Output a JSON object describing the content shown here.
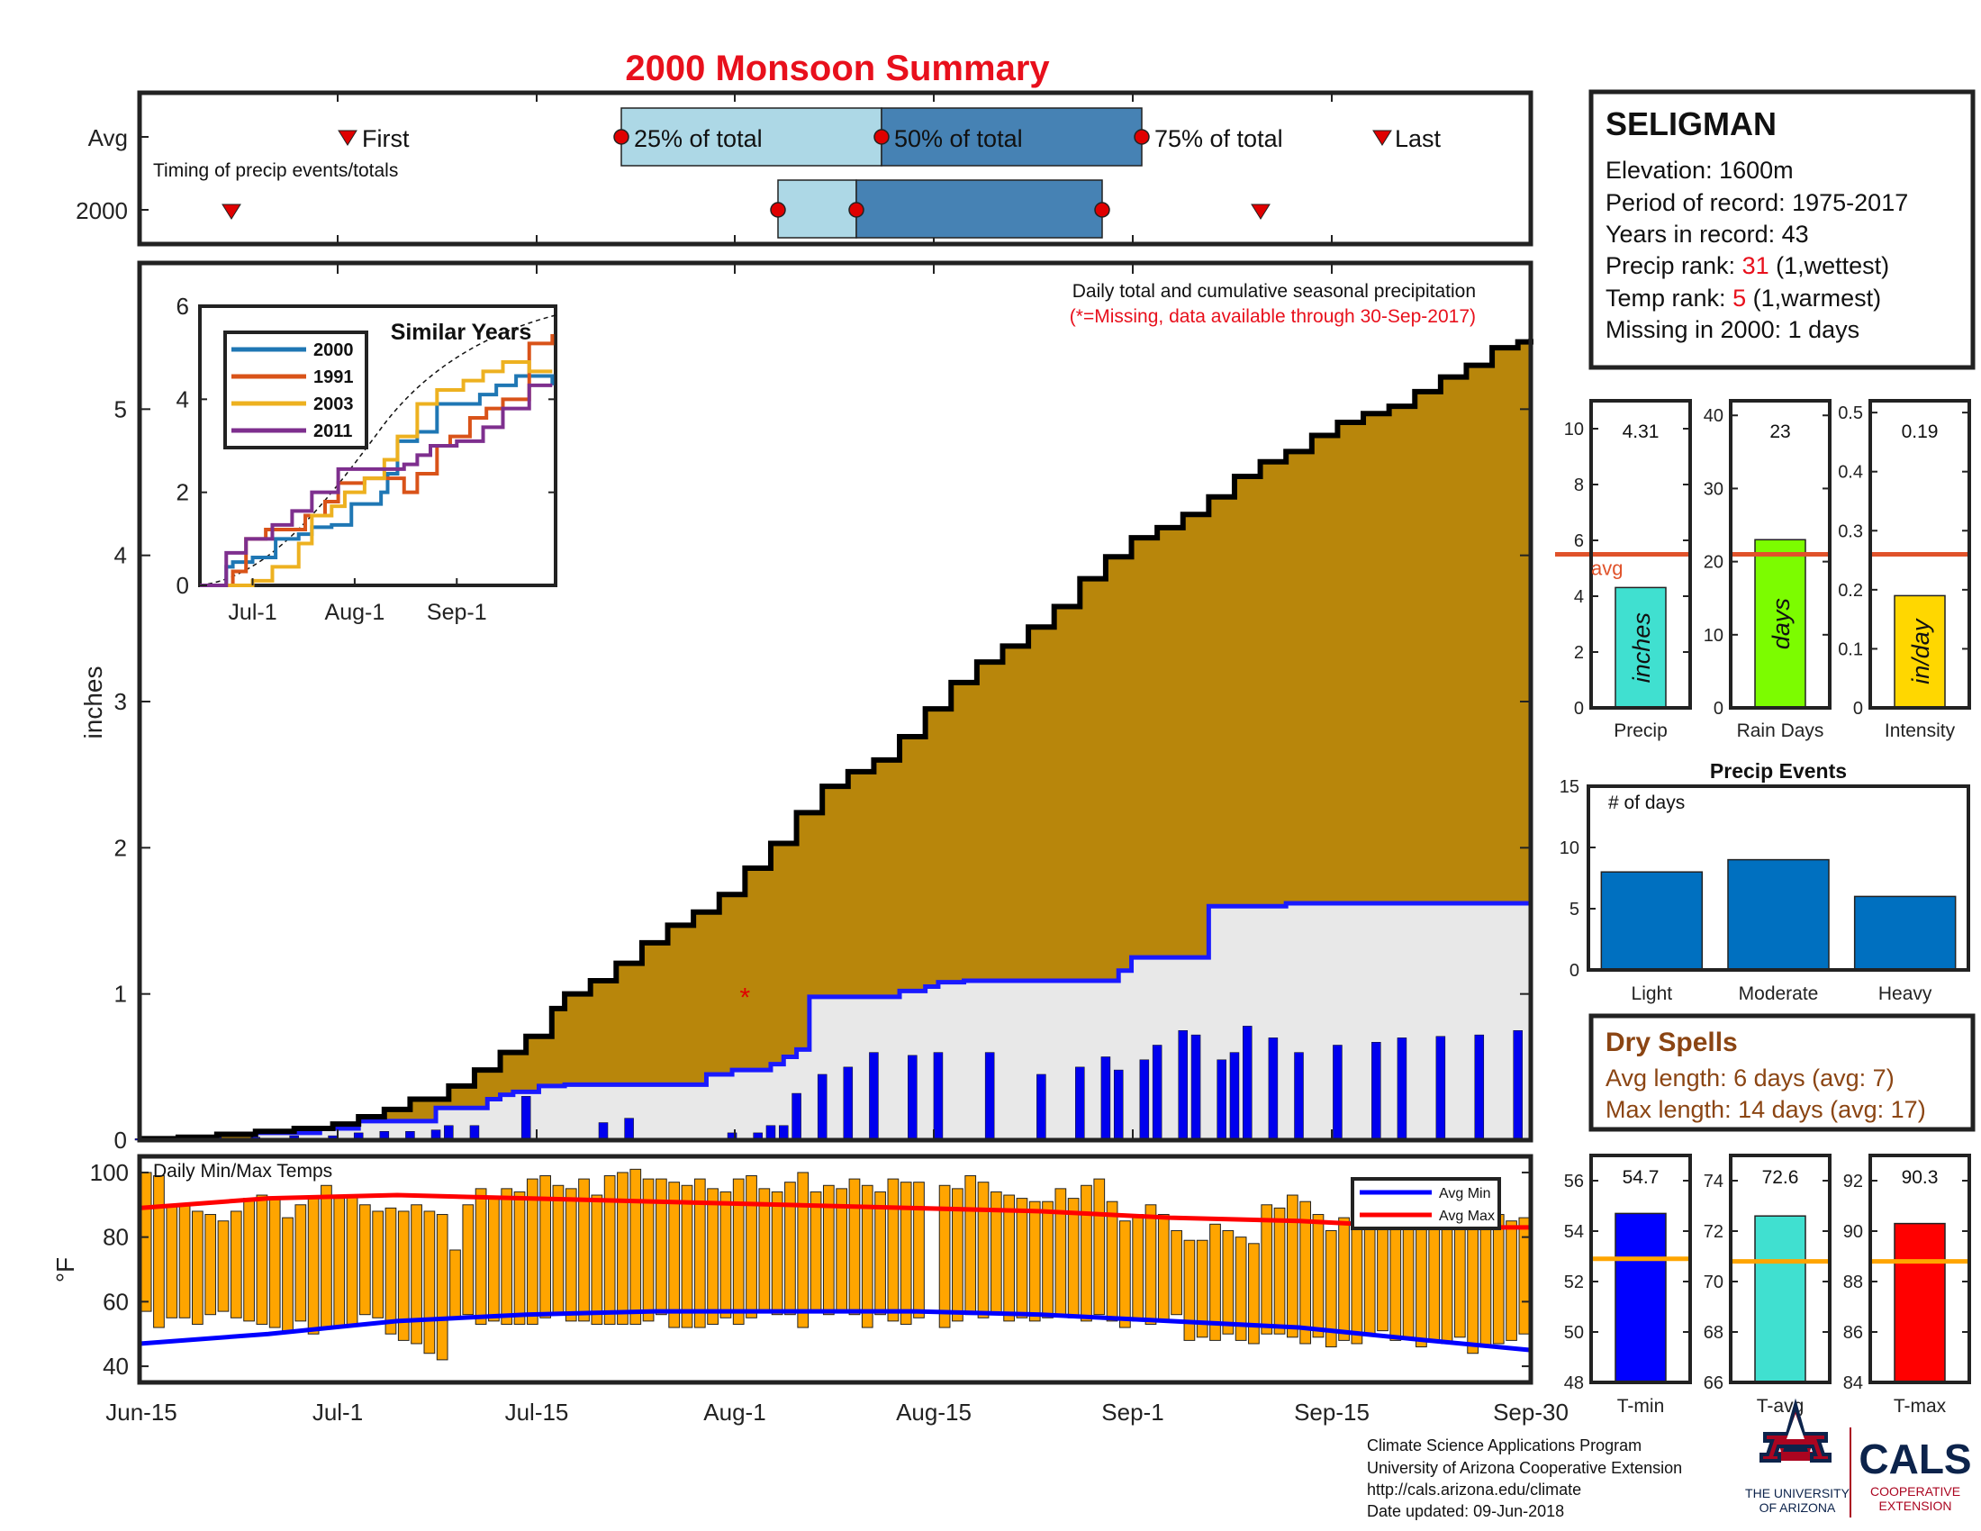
{
  "title": "2000 Monsoon Summary",
  "timing": {
    "row_labels": [
      "Avg",
      "2000"
    ],
    "note": "Timing of precip events/totals",
    "marker_labels": [
      "First",
      "25% of total",
      "50% of total",
      "75% of total",
      "Last"
    ]
  },
  "main_chart": {
    "legend_line1": "Daily total and cumulative seasonal precipitation",
    "legend_line2": "(*=Missing, data available through 30-Sep-2017)",
    "ylabel": "inches",
    "y_ticks": [
      "0",
      "1",
      "2",
      "3",
      "4",
      "5"
    ],
    "x_ticks": [
      "Jun-15",
      "Jul-1",
      "Jul-15",
      "Aug-1",
      "Aug-15",
      "Sep-1",
      "Sep-15",
      "Sep-30"
    ]
  },
  "inset": {
    "title": "Similar Years",
    "y_ticks": [
      "0",
      "2",
      "4",
      "6"
    ],
    "x_ticks": [
      "Jul-1",
      "Aug-1",
      "Sep-1"
    ],
    "legend": [
      "2000",
      "1991",
      "2003",
      "2011"
    ]
  },
  "temps": {
    "label": "Daily Min/Max Temps",
    "ylabel": "°F",
    "y_ticks": [
      "40",
      "60",
      "80",
      "100"
    ],
    "legend": [
      "Avg Min",
      "Avg Max"
    ]
  },
  "station": {
    "name": "SELIGMAN",
    "elevation": "Elevation: 1600m",
    "period": "Period of record: 1975-2017",
    "years": "Years in record: 43",
    "precip_rank_label": "Precip rank: ",
    "precip_rank_value": "31",
    "precip_rank_note": " (1,wettest)",
    "temp_rank_label": "Temp rank: ",
    "temp_rank_value": "5",
    "temp_rank_note": " (1,warmest)",
    "missing": "Missing in 2000: 1 days"
  },
  "small_bars": {
    "precip": {
      "value_label": "4.31",
      "unit": "inches",
      "xlabel": "Precip",
      "avg_label": "avg",
      "y_ticks": [
        "0",
        "2",
        "4",
        "6",
        "8",
        "10"
      ]
    },
    "rain_days": {
      "value_label": "23",
      "unit": "days",
      "xlabel": "Rain Days",
      "y_ticks": [
        "0",
        "10",
        "20",
        "30",
        "40"
      ]
    },
    "intensity": {
      "value_label": "0.19",
      "unit": "in/day",
      "xlabel": "Intensity",
      "y_ticks": [
        "0",
        "0.1",
        "0.2",
        "0.3",
        "0.4",
        "0.5"
      ]
    }
  },
  "precip_events": {
    "title": "Precip Events",
    "ylabel": "# of days",
    "y_ticks": [
      "0",
      "5",
      "10",
      "15"
    ]
  },
  "dry_spells": {
    "title": "Dry Spells",
    "avg_line": "Avg length: 6 days (avg: 7)",
    "max_line": "Max length: 14 days (avg: 17)"
  },
  "temp_bars": {
    "tmin": {
      "value_label": "54.7",
      "xlabel": "T-min",
      "y_ticks": [
        "48",
        "50",
        "52",
        "54",
        "56"
      ]
    },
    "tavg": {
      "value_label": "72.6",
      "xlabel": "T-avg",
      "y_ticks": [
        "66",
        "68",
        "70",
        "72",
        "74"
      ]
    },
    "tmax": {
      "value_label": "90.3",
      "xlabel": "T-max",
      "y_ticks": [
        "84",
        "86",
        "88",
        "90",
        "92"
      ]
    }
  },
  "footer": {
    "line1": "Climate Science Applications Program",
    "line2": "University of Arizona Cooperative Extension",
    "line3": "http://cals.arizona.edu/climate",
    "line4": " Date updated: 09-Jun-2018"
  },
  "logos": {
    "ua_line1": "THE UNIVERSITY",
    "ua_line2": "OF ARIZONA",
    "cals": "CALS",
    "cals_line1": "COOPERATIVE",
    "cals_line2": "EXTENSION"
  },
  "colors": {
    "title": "#e8101c",
    "above_avg": "#b8860b",
    "below_avg": "#228b22",
    "avg_line": "#1a1aff",
    "cumulative": "#000000",
    "daily_bar": "#0000ee",
    "temp_bar": "#ffa500",
    "avg_max_line": "#ff0000",
    "avg_min_line": "#0000ff",
    "box_light": "#add8e6",
    "box_dark": "#4682b4",
    "precip_bar": "#40e0d0",
    "days_bar": "#7cfc00",
    "intensity_bar": "#ffd700",
    "events_bar": "#0070c0",
    "dry_text": "#8b4513",
    "ref_line": "#e0522a",
    "tmin_bar": "#0000ff",
    "tavg_bar": "#40e0d0",
    "tmax_bar": "#ff0000",
    "temp_ref": "#ffa500",
    "ua_red": "#ab0520",
    "ua_navy": "#0c234b"
  },
  "chart_data": [
    {
      "type": "step",
      "id": "cumulative_precip",
      "title": "Daily total and cumulative seasonal precipitation",
      "ylabel": "inches",
      "ylim": [
        0,
        6
      ],
      "x_range": [
        "2000-06-15",
        "2000-09-30"
      ],
      "series": [
        {
          "name": "2000",
          "x": [
            0,
            3,
            6,
            9,
            12,
            15,
            17,
            19,
            21,
            24,
            26,
            28,
            30,
            32,
            33,
            35,
            37,
            39,
            41,
            43,
            45,
            47,
            49,
            51,
            53,
            55,
            57,
            59,
            61,
            63,
            65,
            67,
            69,
            71,
            73,
            75,
            77,
            79,
            81,
            83,
            85,
            87,
            89,
            91,
            93,
            95,
            97,
            99,
            101,
            103,
            105,
            107,
            108
          ],
          "y": [
            0.01,
            0.02,
            0.04,
            0.06,
            0.08,
            0.11,
            0.16,
            0.21,
            0.28,
            0.37,
            0.48,
            0.6,
            0.71,
            0.9,
            1.0,
            1.09,
            1.21,
            1.35,
            1.47,
            1.56,
            1.68,
            1.86,
            2.03,
            2.24,
            2.42,
            2.52,
            2.6,
            2.76,
            2.95,
            3.13,
            3.27,
            3.38,
            3.51,
            3.65,
            3.84,
            3.99,
            4.12,
            4.19,
            4.28,
            4.4,
            4.54,
            4.64,
            4.71,
            4.82,
            4.91,
            4.97,
            5.02,
            5.12,
            5.22,
            5.3,
            5.42,
            5.46,
            5.48
          ]
        },
        {
          "name": "Average",
          "x": [
            0,
            9,
            14,
            17,
            23,
            27,
            28,
            29,
            31,
            33,
            37,
            44,
            46,
            49,
            50,
            51,
            52,
            56,
            57,
            59,
            61,
            62,
            63,
            64,
            66,
            69,
            75,
            76,
            77,
            83,
            89,
            108
          ],
          "y": [
            0,
            0.05,
            0.08,
            0.13,
            0.22,
            0.28,
            0.31,
            0.33,
            0.37,
            0.38,
            0.38,
            0.45,
            0.48,
            0.52,
            0.57,
            0.62,
            0.98,
            0.98,
            0.98,
            1.02,
            1.05,
            1.08,
            1.08,
            1.09,
            1.09,
            1.09,
            1.09,
            1.16,
            1.25,
            1.6,
            1.62,
            1.63
          ]
        }
      ],
      "bars": {
        "name": "Daily total",
        "x": [
          0,
          6,
          9,
          12,
          15,
          17,
          19,
          21,
          23,
          24,
          26,
          30,
          36,
          38,
          46,
          48,
          49,
          50,
          51,
          53,
          55,
          57,
          60,
          62,
          66,
          70,
          73,
          75,
          76,
          78,
          79,
          81,
          82,
          84,
          85,
          86,
          88,
          90,
          93,
          96,
          98,
          101,
          104,
          107
        ],
        "y": [
          0.01,
          0.02,
          0.02,
          0.03,
          0.03,
          0.05,
          0.06,
          0.06,
          0.07,
          0.1,
          0.1,
          0.3,
          0.12,
          0.15,
          0.05,
          0.05,
          0.1,
          0.1,
          0.32,
          0.45,
          0.5,
          0.6,
          0.58,
          0.6,
          0.6,
          0.45,
          0.5,
          0.57,
          0.48,
          0.55,
          0.65,
          0.75,
          0.72,
          0.55,
          0.6,
          0.78,
          0.7,
          0.6,
          0.65,
          0.67,
          0.7,
          0.71,
          0.72,
          0.75
        ]
      },
      "missing_marker": {
        "x": 47,
        "y": 1.0
      }
    },
    {
      "type": "line",
      "id": "similar_years",
      "title": "Similar Years",
      "ylim": [
        0,
        6
      ],
      "x_ticks": [
        "Jul-1",
        "Aug-1",
        "Sep-1"
      ],
      "series": [
        {
          "name": "2000",
          "x": [
            0,
            8,
            10,
            16,
            23,
            30,
            34,
            40,
            46,
            55,
            57,
            60,
            66,
            72,
            85,
            90,
            96,
            107
          ],
          "y": [
            0,
            0.4,
            0.5,
            0.6,
            1.0,
            1.1,
            1.25,
            1.3,
            1.75,
            2.0,
            2.4,
            3.1,
            3.3,
            3.9,
            4.1,
            4.3,
            4.5,
            4.3
          ]
        },
        {
          "name": "1991",
          "x": [
            0,
            10,
            14,
            20,
            25,
            32,
            38,
            42,
            50,
            56,
            62,
            66,
            72,
            76,
            82,
            87,
            92,
            100,
            107
          ],
          "y": [
            0,
            0.3,
            1.0,
            1.2,
            1.2,
            1.5,
            1.8,
            2.2,
            2.3,
            2.3,
            2.0,
            2.4,
            3.0,
            3.2,
            3.6,
            3.8,
            4.0,
            5.2,
            5.4
          ]
        },
        {
          "name": "2003",
          "x": [
            0,
            16,
            22,
            30,
            34,
            40,
            44,
            50,
            56,
            60,
            66,
            72,
            80,
            86,
            92,
            100,
            107
          ],
          "y": [
            0,
            0.1,
            0.4,
            0.9,
            1.5,
            1.7,
            2.0,
            2.3,
            2.7,
            3.2,
            3.9,
            4.2,
            4.4,
            4.6,
            4.8,
            4.6,
            4.6
          ]
        },
        {
          "name": "2011",
          "x": [
            0,
            8,
            14,
            22,
            28,
            34,
            42,
            50,
            56,
            62,
            66,
            70,
            78,
            86,
            92,
            100,
            107
          ],
          "y": [
            0,
            0.7,
            1.0,
            1.3,
            1.6,
            2.0,
            2.5,
            2.5,
            2.5,
            2.6,
            2.8,
            3.0,
            3.1,
            3.4,
            3.8,
            4.3,
            4.3
          ]
        }
      ]
    },
    {
      "type": "bar",
      "id": "daily_temps",
      "title": "Daily Min/Max Temps",
      "ylabel": "°F",
      "ylim": [
        35,
        105
      ],
      "series": [
        {
          "name": "Avg Min",
          "x": [
            0,
            10,
            20,
            30,
            40,
            50,
            60,
            70,
            80,
            90,
            100,
            108
          ],
          "y": [
            47,
            50,
            54,
            56,
            57,
            57,
            57,
            56,
            54,
            52,
            48,
            45
          ]
        },
        {
          "name": "Avg Max",
          "x": [
            0,
            10,
            20,
            30,
            40,
            50,
            60,
            70,
            80,
            90,
            100,
            108
          ],
          "y": [
            89,
            92,
            93,
            92,
            91,
            90,
            89,
            88,
            86,
            85,
            83,
            83
          ]
        }
      ],
      "daily_min": [
        57,
        52,
        55,
        55,
        53,
        56,
        57,
        55,
        54,
        53,
        52,
        51,
        54,
        50,
        52,
        52,
        53,
        56,
        55,
        50,
        48,
        47,
        44,
        42,
        55,
        56,
        53,
        54,
        53,
        53,
        53,
        55,
        56,
        54,
        54,
        53,
        53,
        53,
        53,
        54,
        56,
        52,
        52,
        52,
        53,
        55,
        53,
        55,
        57,
        56,
        56,
        52,
        57,
        56,
        57,
        56,
        52,
        56,
        54,
        53,
        55,
        53,
        52,
        54,
        56,
        55,
        56,
        54,
        55,
        54,
        55,
        56,
        55,
        54,
        56,
        54,
        52,
        54,
        53,
        54,
        56,
        48,
        49,
        48,
        50,
        48,
        47,
        50,
        50,
        49,
        47,
        49,
        46,
        48,
        47,
        50,
        51,
        48,
        49,
        46,
        48,
        47,
        49,
        44,
        46,
        47,
        48,
        50
      ],
      "daily_max": [
        100,
        99,
        90,
        90,
        88,
        87,
        85,
        88,
        92,
        93,
        92,
        86,
        90,
        92,
        96,
        92,
        93,
        90,
        88,
        89,
        88,
        90,
        88,
        87,
        76,
        90,
        95,
        92,
        95,
        94,
        98,
        99,
        96,
        95,
        98,
        93,
        99,
        100,
        101,
        98,
        98,
        97,
        96,
        98,
        95,
        94,
        98,
        99,
        95,
        94,
        97,
        100,
        94,
        96,
        95,
        98,
        96,
        94,
        98,
        97,
        97,
        93,
        96,
        95,
        99,
        97,
        94,
        93,
        92,
        91,
        91,
        95,
        92,
        96,
        98,
        91,
        85,
        87,
        90,
        87,
        82,
        79,
        79,
        84,
        82,
        80,
        78,
        90,
        89,
        93,
        91,
        87,
        82,
        86,
        87,
        84,
        90,
        87,
        90,
        97,
        91,
        98,
        96,
        95,
        90,
        87,
        85,
        86
      ]
    },
    {
      "type": "bar",
      "id": "seasonal_totals",
      "categories": [
        "Precip",
        "Rain Days",
        "Intensity"
      ],
      "values": [
        4.31,
        23,
        0.19
      ],
      "averages": [
        5.5,
        21,
        0.26
      ],
      "ylim": [
        [
          0,
          11
        ],
        [
          0,
          42
        ],
        [
          0,
          0.52
        ]
      ]
    },
    {
      "type": "bar",
      "id": "precip_events",
      "title": "Precip Events",
      "ylabel": "# of days",
      "categories": [
        "Light",
        "Moderate",
        "Heavy"
      ],
      "values": [
        8,
        9,
        6
      ],
      "ylim": [
        0,
        15
      ]
    },
    {
      "type": "bar",
      "id": "seasonal_temps",
      "categories": [
        "T-min",
        "T-avg",
        "T-max"
      ],
      "values": [
        54.7,
        72.6,
        90.3
      ],
      "averages": [
        52.9,
        70.8,
        88.8
      ],
      "ylim": [
        [
          48,
          57
        ],
        [
          66,
          75
        ],
        [
          84,
          93
        ]
      ]
    }
  ]
}
